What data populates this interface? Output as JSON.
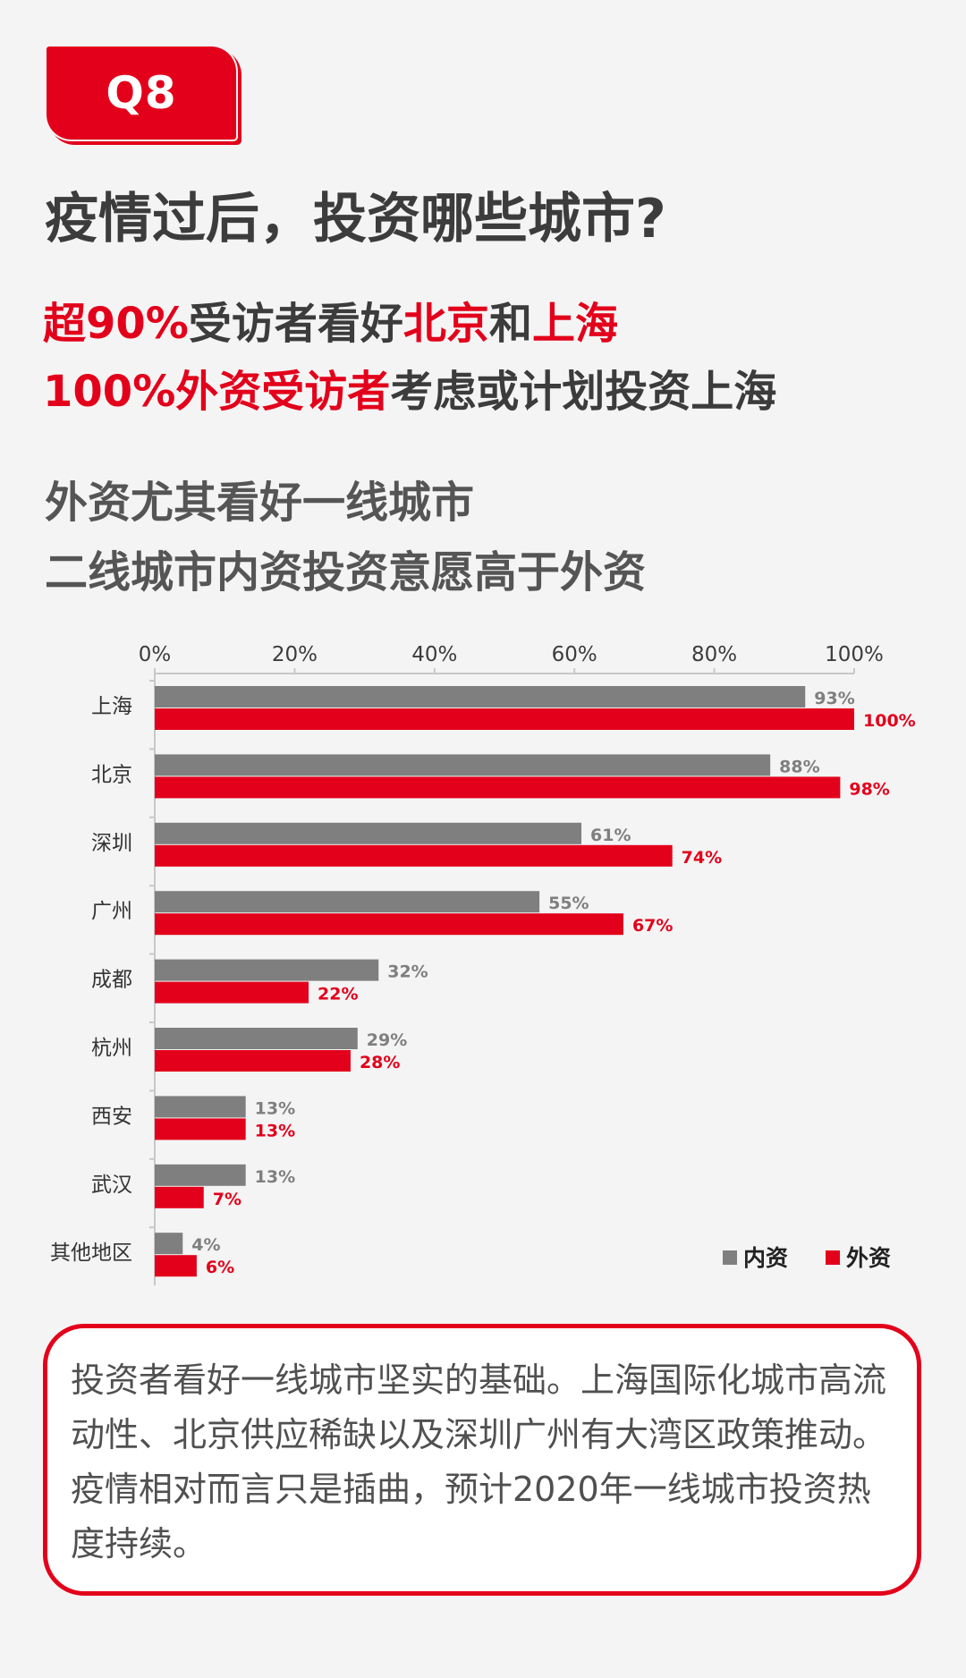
{
  "badge": {
    "label": "Q8"
  },
  "title": "疫情过后，投资哪些城市?",
  "line1": {
    "p1": "超90%",
    "p2": "受访者看好",
    "p3": "北京",
    "p4": "和",
    "p5": "上海"
  },
  "line2": {
    "p1": "100%外资受访者",
    "p2": "考虑或计划投资上海"
  },
  "headline1": "外资尤其看好一线城市",
  "headline2": "二线城市内资投资意愿高于外资",
  "colors": {
    "accent": "#e3001b",
    "domestic": "#7f7f7f",
    "text": "#4a4a4a"
  },
  "chart_data": {
    "type": "bar",
    "orientation": "horizontal",
    "categories": [
      "上海",
      "北京",
      "深圳",
      "广州",
      "成都",
      "杭州",
      "西安",
      "武汉",
      "其他地区"
    ],
    "series": [
      {
        "name": "内资",
        "values": [
          93,
          88,
          61,
          55,
          32,
          29,
          13,
          13,
          4
        ]
      },
      {
        "name": "外资",
        "values": [
          100,
          98,
          74,
          67,
          22,
          28,
          13,
          7,
          6
        ]
      }
    ],
    "xlim": [
      0,
      100
    ],
    "xticks": [
      "0%",
      "20%",
      "40%",
      "60%",
      "80%",
      "100%"
    ],
    "value_suffix": "%",
    "legend_position": "bottom-right",
    "grid": false
  },
  "summary": "投资者看好一线城市坚实的基础。上海国际化城市高流动性、北京供应稀缺以及深圳广州有大湾区政策推动。疫情相对而言只是插曲，预计2020年一线城市投资热度持续。"
}
